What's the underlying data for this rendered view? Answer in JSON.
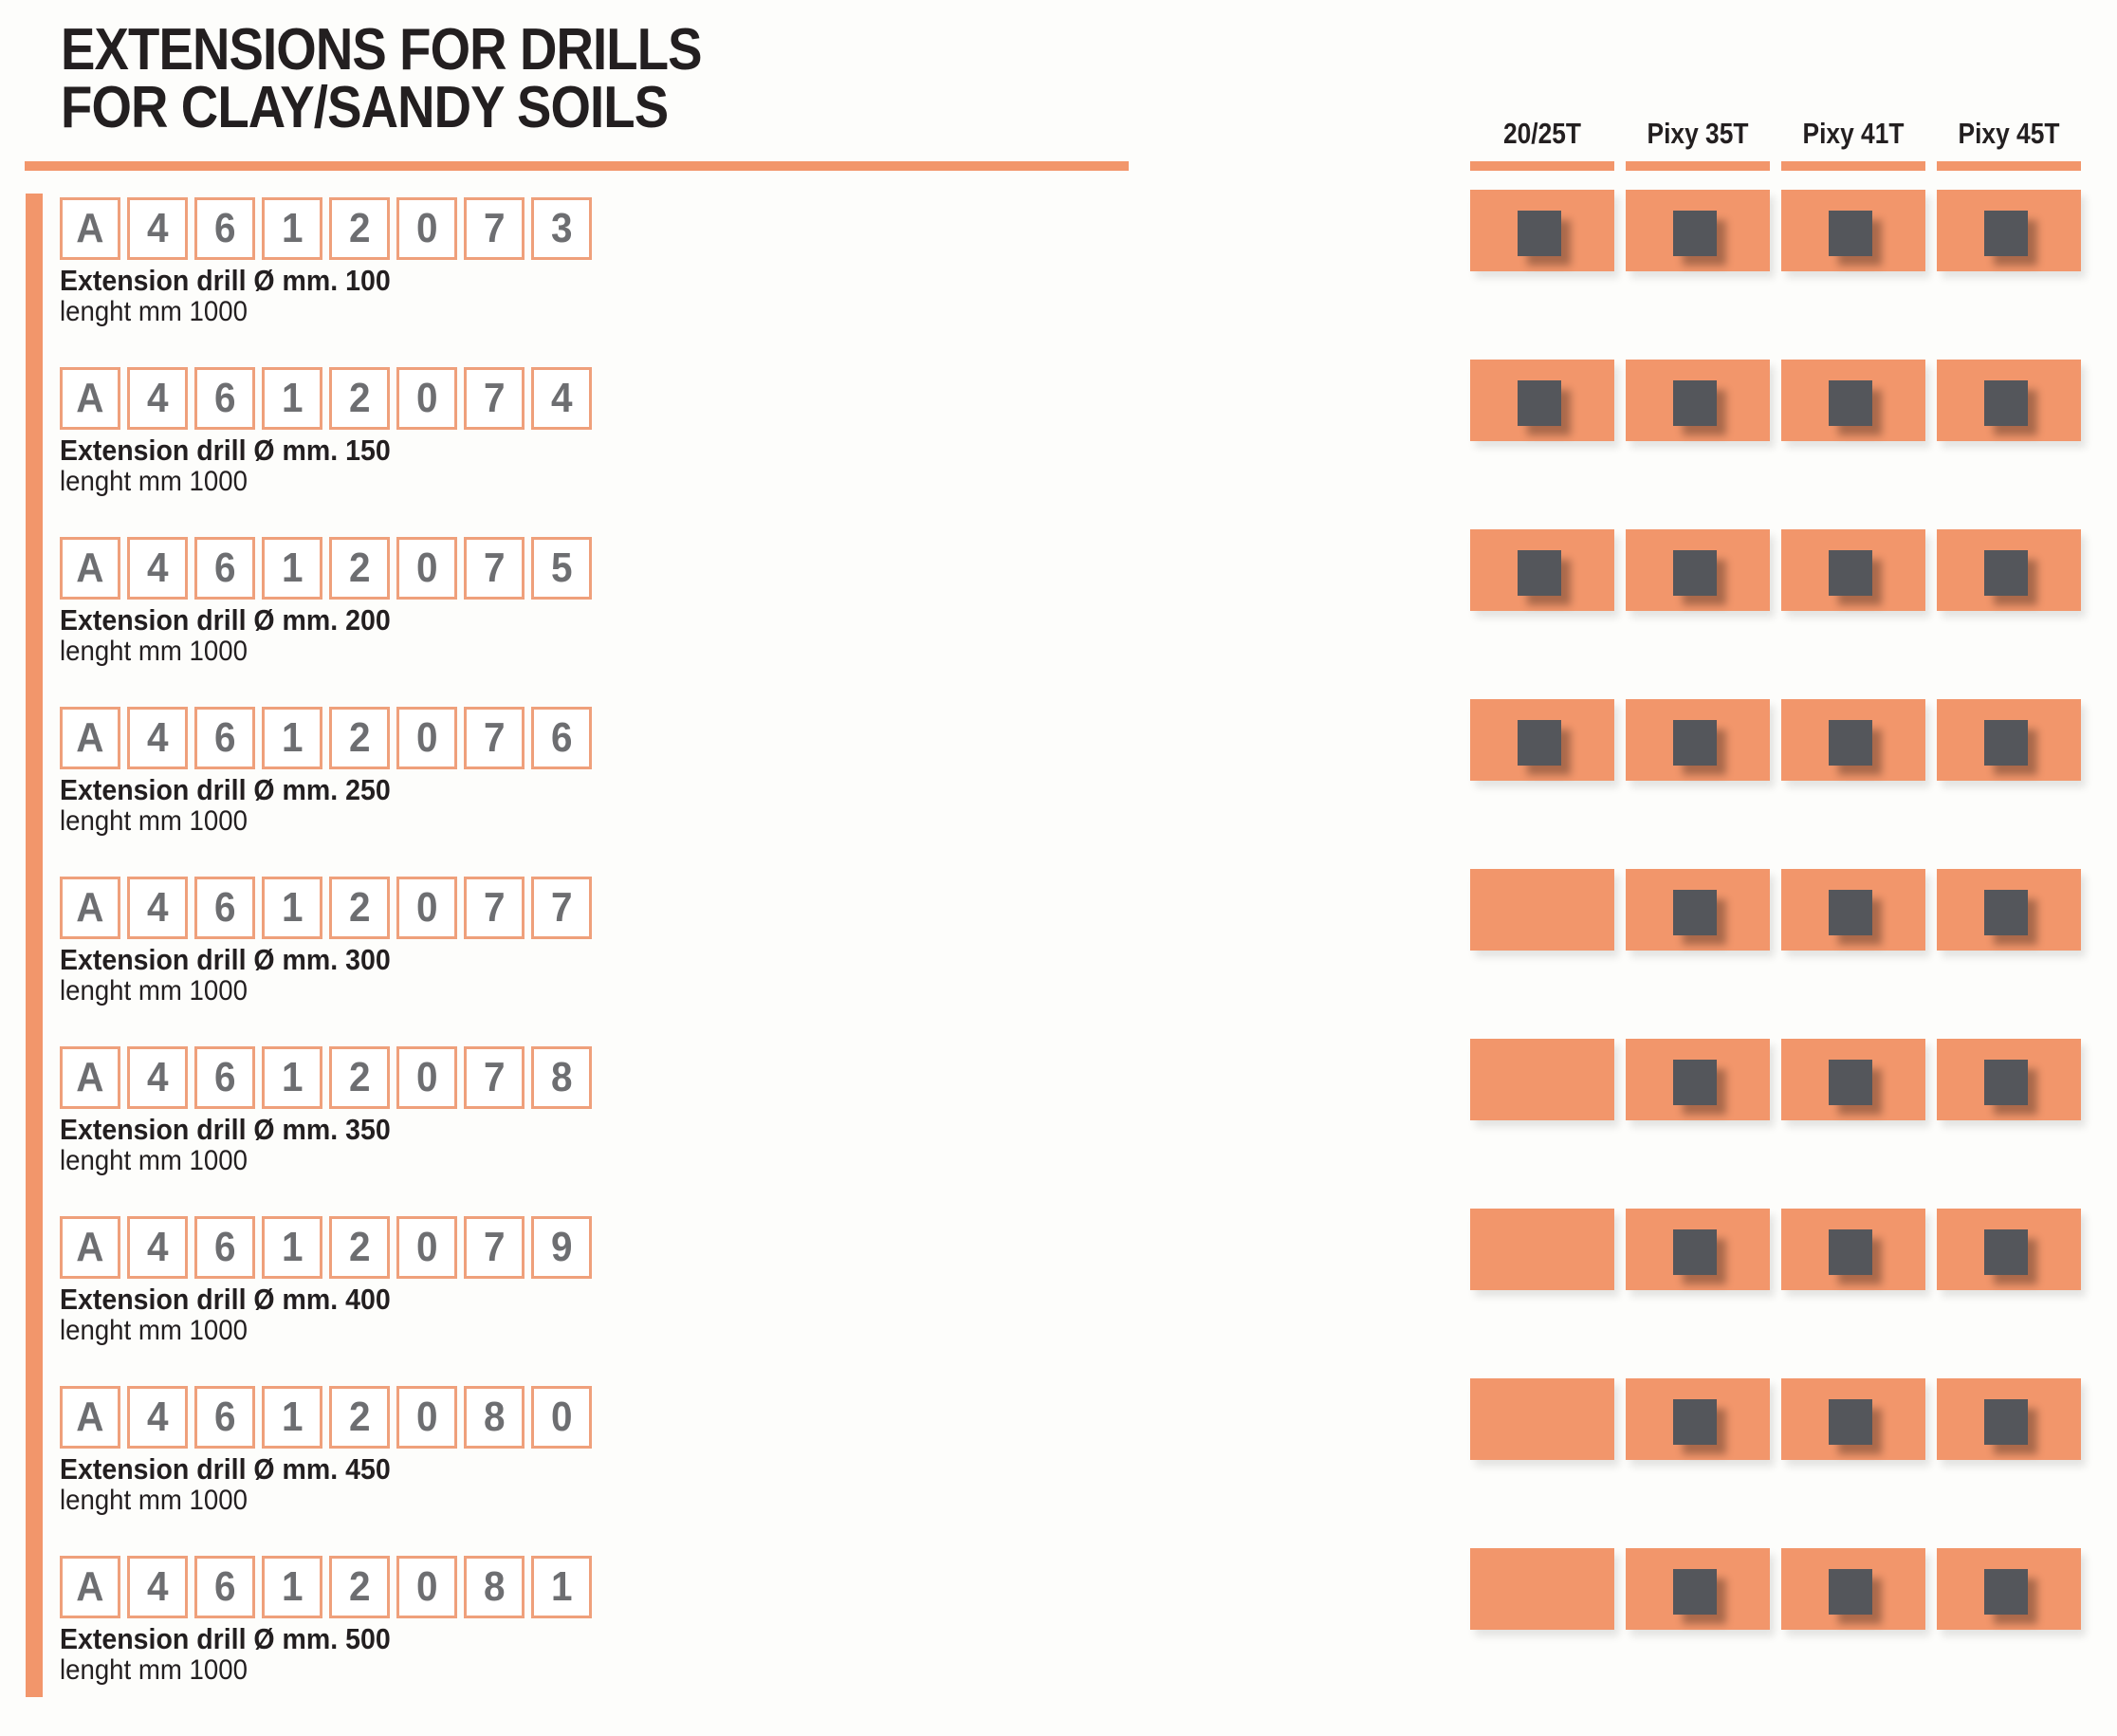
{
  "title": {
    "line1": "EXTENSIONS FOR DRILLS",
    "line2": "FOR CLAY/SANDY SOILS"
  },
  "colors": {
    "accent_orange": "#f2966b",
    "cell_orange": "#f2966b",
    "compat_square_dark": "#54565b",
    "code_text_gray": "#6d6e71",
    "text_black": "#231f20"
  },
  "matrix": {
    "columns": [
      "20/25T",
      "Pixy 35T",
      "Pixy 41T",
      "Pixy 45T"
    ]
  },
  "rows": [
    {
      "code": "A4612073",
      "code_chars": [
        "A",
        "4",
        "6",
        "1",
        "2",
        "0",
        "7",
        "3"
      ],
      "description": "Extension drill Ø mm. 100",
      "length": "lenght mm 1000",
      "compatibility": [
        true,
        true,
        true,
        true
      ]
    },
    {
      "code": "A4612074",
      "code_chars": [
        "A",
        "4",
        "6",
        "1",
        "2",
        "0",
        "7",
        "4"
      ],
      "description": "Extension drill Ø mm. 150",
      "length": "lenght mm 1000",
      "compatibility": [
        true,
        true,
        true,
        true
      ]
    },
    {
      "code": "A4612075",
      "code_chars": [
        "A",
        "4",
        "6",
        "1",
        "2",
        "0",
        "7",
        "5"
      ],
      "description": "Extension drill Ø mm. 200",
      "length": "lenght mm 1000",
      "compatibility": [
        true,
        true,
        true,
        true
      ]
    },
    {
      "code": "A4612076",
      "code_chars": [
        "A",
        "4",
        "6",
        "1",
        "2",
        "0",
        "7",
        "6"
      ],
      "description": "Extension drill Ø mm. 250",
      "length": "lenght mm 1000",
      "compatibility": [
        true,
        true,
        true,
        true
      ]
    },
    {
      "code": "A4612077",
      "code_chars": [
        "A",
        "4",
        "6",
        "1",
        "2",
        "0",
        "7",
        "7"
      ],
      "description": "Extension drill Ø mm. 300",
      "length": "lenght mm 1000",
      "compatibility": [
        false,
        true,
        true,
        true
      ]
    },
    {
      "code": "A4612078",
      "code_chars": [
        "A",
        "4",
        "6",
        "1",
        "2",
        "0",
        "7",
        "8"
      ],
      "description": "Extension drill Ø mm. 350",
      "length": "lenght mm 1000",
      "compatibility": [
        false,
        true,
        true,
        true
      ]
    },
    {
      "code": "A4612079",
      "code_chars": [
        "A",
        "4",
        "6",
        "1",
        "2",
        "0",
        "7",
        "9"
      ],
      "description": "Extension drill Ø mm. 400",
      "length": "lenght mm 1000",
      "compatibility": [
        false,
        true,
        true,
        true
      ]
    },
    {
      "code": "A4612080",
      "code_chars": [
        "A",
        "4",
        "6",
        "1",
        "2",
        "0",
        "8",
        "0"
      ],
      "description": "Extension drill Ø mm. 450",
      "length": "lenght mm 1000",
      "compatibility": [
        false,
        true,
        true,
        true
      ]
    },
    {
      "code": "A4612081",
      "code_chars": [
        "A",
        "4",
        "6",
        "1",
        "2",
        "0",
        "8",
        "1"
      ],
      "description": "Extension drill Ø mm. 500",
      "length": "lenght mm 1000",
      "compatibility": [
        false,
        true,
        true,
        true
      ]
    }
  ]
}
